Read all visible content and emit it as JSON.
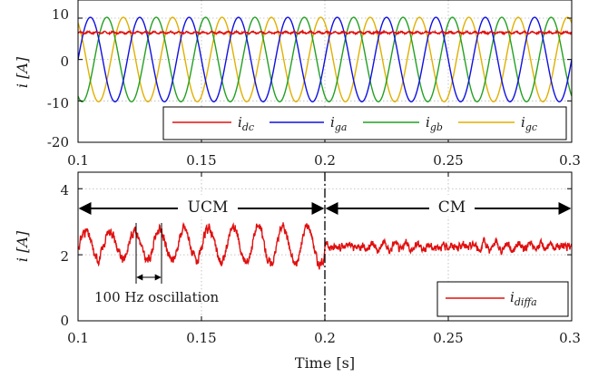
{
  "chart_data": [
    {
      "type": "line",
      "ylabel": "i [A]",
      "xlim": [
        0.1,
        0.3
      ],
      "ylim": [
        -20,
        10
      ],
      "x_ticks": [
        "0.1",
        "0.15",
        "0.2",
        "0.25",
        "0.3"
      ],
      "y_ticks": [
        "10",
        "0",
        "-10",
        "-20"
      ],
      "grid": true,
      "legend_position": "bottom",
      "series": [
        {
          "name": "i_dc",
          "legend": {
            "main": "i",
            "sub": "dc"
          },
          "color": "#e01010",
          "kind": "dc",
          "mean": 6.5,
          "amplitude": 0.2
        },
        {
          "name": "i_ga",
          "legend": {
            "main": "i",
            "sub": "ga"
          },
          "color": "#1010e0",
          "kind": "sine",
          "amplitude": 10.2,
          "frequency_hz": 50,
          "phase_deg": 0
        },
        {
          "name": "i_gb",
          "legend": {
            "main": "i",
            "sub": "gb"
          },
          "color": "#22a022",
          "kind": "sine",
          "amplitude": 10.2,
          "frequency_hz": 50,
          "phase_deg": -120
        },
        {
          "name": "i_gc",
          "legend": {
            "main": "i",
            "sub": "gc"
          },
          "color": "#e0b000",
          "kind": "sine",
          "amplitude": 10.2,
          "frequency_hz": 50,
          "phase_deg": 120
        }
      ]
    },
    {
      "type": "line",
      "xlabel": "Time [s]",
      "ylabel": "i [A]",
      "xlim": [
        0.1,
        0.3
      ],
      "ylim": [
        0,
        4.5
      ],
      "x_ticks": [
        "0.1",
        "0.15",
        "0.2",
        "0.25",
        "0.3"
      ],
      "y_ticks": [
        "4",
        "2",
        "0"
      ],
      "grid": true,
      "legend_position": "bottom-right",
      "series": [
        {
          "name": "i_diffa",
          "legend": {
            "main": "i",
            "sub": "diffa"
          },
          "color": "#e01010",
          "segments": [
            {
              "x_range": [
                0.1,
                0.2
              ],
              "mean": 2.3,
              "oscillation_amplitude": 0.55,
              "frequency_hz": 100
            },
            {
              "x_range": [
                0.2,
                0.3
              ],
              "mean": 2.25,
              "oscillation_amplitude": 0.12
            }
          ]
        }
      ],
      "annotations": {
        "ucm": "UCM",
        "cm": "CM",
        "oscillation": "100 Hz oscillation",
        "mode_boundary_x": 0.2
      }
    }
  ]
}
